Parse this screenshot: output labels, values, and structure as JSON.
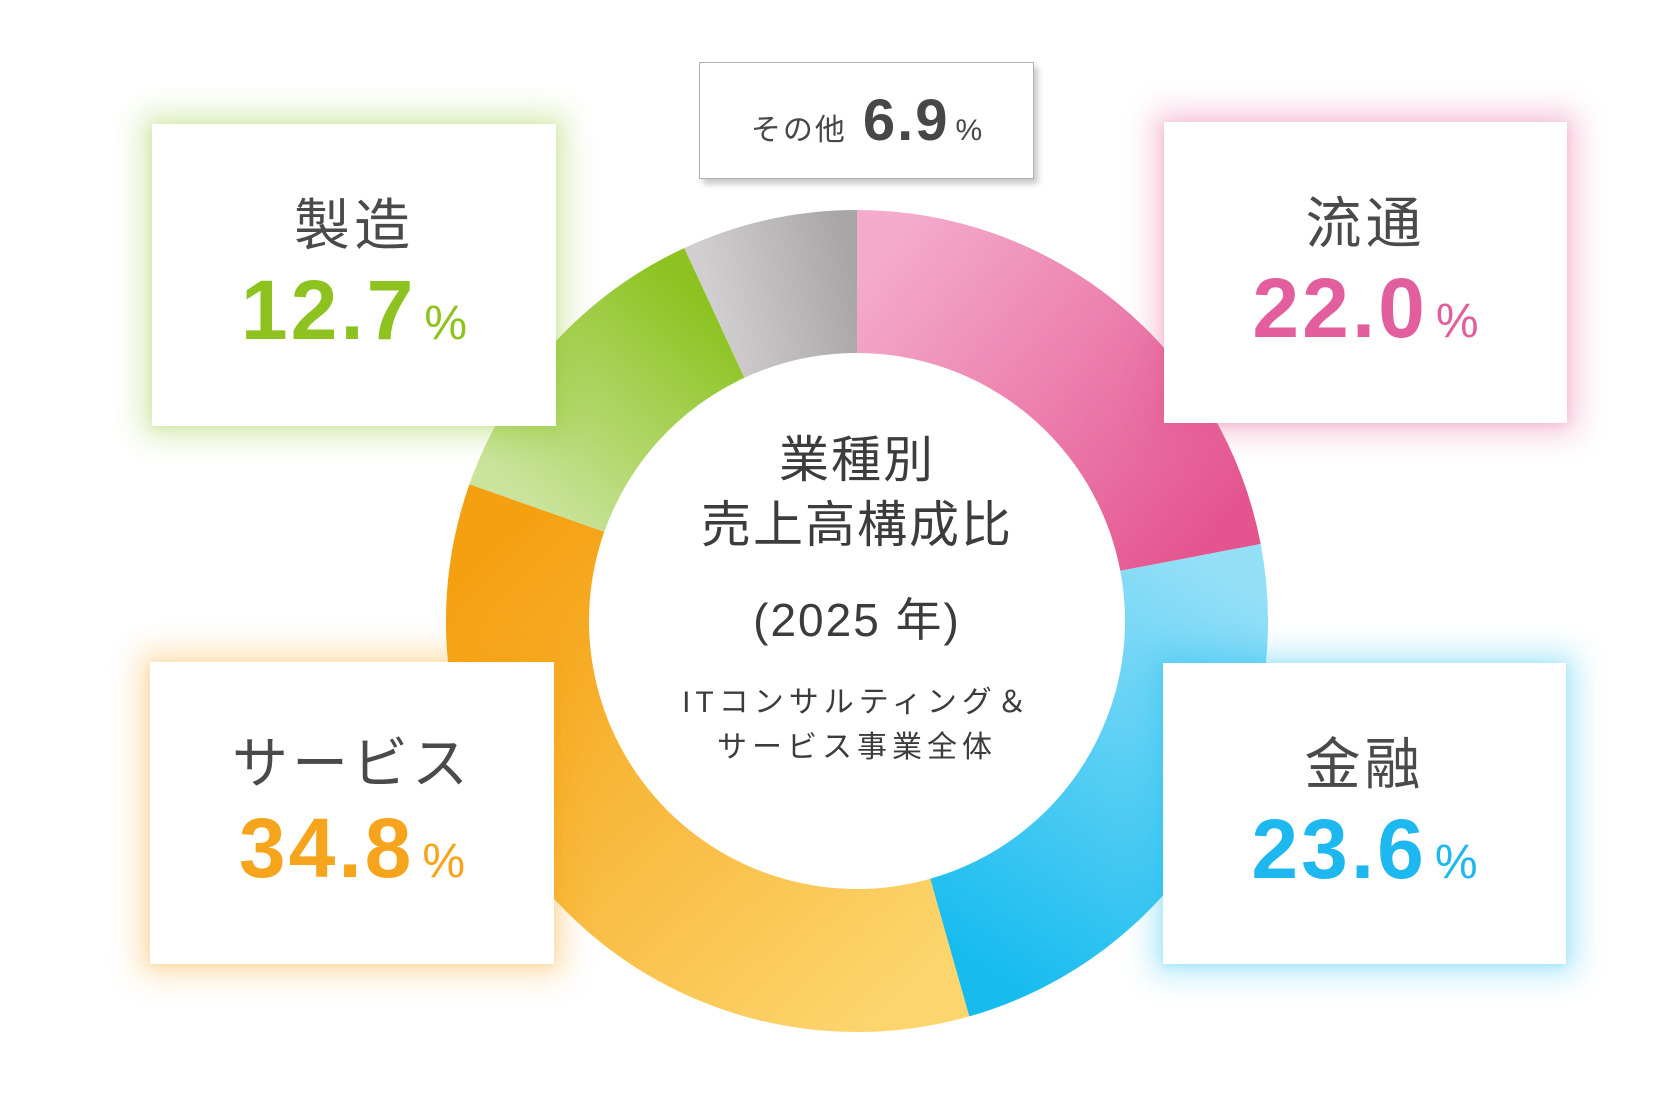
{
  "chart_data": {
    "type": "pie",
    "variant": "donut",
    "title_lines": [
      "業種別",
      "売上高構成比"
    ],
    "subtitle": "(2025 年)",
    "note_lines": [
      "ITコンサルティング＆",
      "サービス事業全体"
    ],
    "unit": "%",
    "direction": "clockwise",
    "start_angle_deg": 0,
    "legend_position": "callout-boxes",
    "segments": [
      {
        "key": "distribution",
        "label": "流通",
        "value": 22.0,
        "display": "22.0",
        "color_main": "#E4558F",
        "color_light": "#F4ABCC",
        "value_color": "#E25E9C"
      },
      {
        "key": "finance",
        "label": "金融",
        "value": 23.6,
        "display": "23.6",
        "color_main": "#17BCEF",
        "color_light": "#93DFF8",
        "value_color": "#1CB8EF"
      },
      {
        "key": "services",
        "label": "サービス",
        "value": 34.8,
        "display": "34.8",
        "color_main": "#F5A011",
        "color_light": "#FCD56D",
        "value_color": "#F6A41B"
      },
      {
        "key": "manufacturing",
        "label": "製造",
        "value": 12.7,
        "display": "12.7",
        "color_main": "#8CC320",
        "color_light": "#C9E49C",
        "value_color": "#8DC21F"
      },
      {
        "key": "other",
        "label": "その他",
        "value": 6.9,
        "display": "6.9",
        "color_main": "#A7A5A6",
        "color_light": "#D0CECF",
        "value_color": "#474747"
      }
    ]
  }
}
